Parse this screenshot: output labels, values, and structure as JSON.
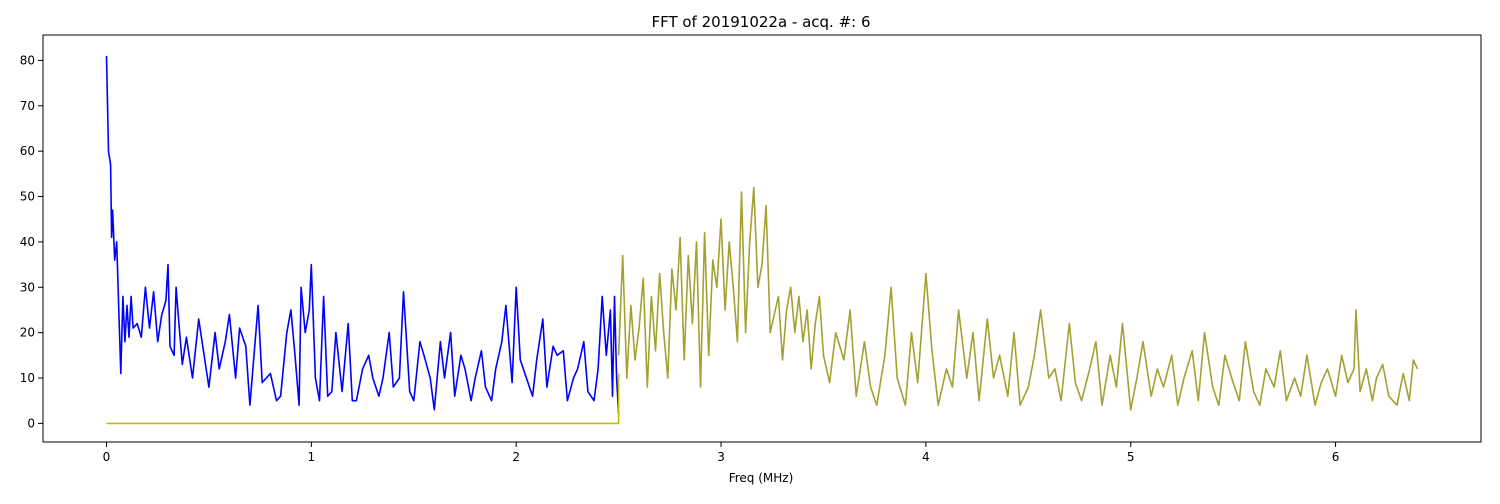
{
  "chart_data": {
    "type": "line",
    "title": "FFT of 20191022a - acq. #: 6",
    "xlabel": "Freq (MHz)",
    "ylabel": "",
    "xlim": [
      -0.31,
      6.71
    ],
    "ylim": [
      -4.1,
      85.6
    ],
    "xticks": [
      0,
      1,
      2,
      3,
      4,
      5,
      6
    ],
    "yticks": [
      0,
      10,
      20,
      30,
      40,
      50,
      60,
      70,
      80
    ],
    "grid": false,
    "legend": "none",
    "colors": {
      "blue_series": "#0000ff",
      "yellow_series": "#bfbf00",
      "olive_series": "#a4a032"
    },
    "series": [
      {
        "color": "#0000ff",
        "x": [
          0.0,
          0.01,
          0.02,
          0.025,
          0.03,
          0.04,
          0.05,
          0.06,
          0.07,
          0.08,
          0.09,
          0.1,
          0.11,
          0.12,
          0.13,
          0.15,
          0.17,
          0.19,
          0.21,
          0.23,
          0.25,
          0.27,
          0.29,
          0.3,
          0.31,
          0.33,
          0.34,
          0.35,
          0.37,
          0.39,
          0.42,
          0.45,
          0.48,
          0.5,
          0.53,
          0.55,
          0.58,
          0.6,
          0.63,
          0.65,
          0.68,
          0.7,
          0.72,
          0.74,
          0.76,
          0.78,
          0.8,
          0.83,
          0.85,
          0.88,
          0.9,
          0.92,
          0.94,
          0.95,
          0.97,
          0.99,
          1.0,
          1.02,
          1.04,
          1.06,
          1.08,
          1.1,
          1.12,
          1.15,
          1.18,
          1.2,
          1.22,
          1.25,
          1.28,
          1.3,
          1.33,
          1.35,
          1.38,
          1.4,
          1.43,
          1.45,
          1.48,
          1.5,
          1.53,
          1.55,
          1.58,
          1.6,
          1.63,
          1.65,
          1.68,
          1.7,
          1.73,
          1.75,
          1.78,
          1.8,
          1.83,
          1.85,
          1.88,
          1.9,
          1.93,
          1.95,
          1.98,
          2.0,
          2.02,
          2.05,
          2.08,
          2.1,
          2.13,
          2.15,
          2.18,
          2.2,
          2.23,
          2.25,
          2.28,
          2.3,
          2.33,
          2.35,
          2.38,
          2.4,
          2.42,
          2.44,
          2.46,
          2.47,
          2.48,
          2.49,
          2.5
        ],
        "y": [
          81,
          60,
          57,
          41,
          47,
          36,
          40,
          25,
          11,
          28,
          18,
          26,
          19,
          28,
          21,
          22,
          19,
          30,
          21,
          29,
          18,
          24,
          27,
          35,
          17,
          15,
          30,
          24,
          13,
          19,
          10,
          23,
          14,
          8,
          20,
          12,
          18,
          24,
          10,
          21,
          17,
          4,
          15,
          26,
          9,
          10,
          11,
          5,
          6,
          20,
          25,
          15,
          4,
          30,
          20,
          25,
          35,
          10,
          5,
          28,
          6,
          7,
          20,
          7,
          22,
          5,
          5,
          12,
          15,
          10,
          6,
          10,
          20,
          8,
          10,
          29,
          7,
          5,
          18,
          15,
          10,
          3,
          18,
          10,
          20,
          6,
          15,
          12,
          5,
          10,
          16,
          8,
          5,
          12,
          18,
          26,
          9,
          30,
          14,
          10,
          6,
          14,
          23,
          8,
          17,
          15,
          16,
          5,
          10,
          12,
          18,
          7,
          5,
          12,
          28,
          15,
          25,
          6,
          28,
          10,
          2
        ]
      },
      {
        "color": "#bfbf00",
        "x": [
          0.0,
          2.5,
          2.5
        ],
        "y": [
          0,
          0,
          11
        ]
      },
      {
        "color": "#a4a032",
        "x": [
          2.5,
          2.52,
          2.54,
          2.56,
          2.58,
          2.6,
          2.62,
          2.64,
          2.66,
          2.68,
          2.7,
          2.72,
          2.74,
          2.76,
          2.78,
          2.8,
          2.82,
          2.84,
          2.86,
          2.88,
          2.9,
          2.92,
          2.94,
          2.96,
          2.98,
          3.0,
          3.02,
          3.04,
          3.06,
          3.08,
          3.1,
          3.12,
          3.14,
          3.16,
          3.18,
          3.2,
          3.22,
          3.24,
          3.26,
          3.28,
          3.3,
          3.32,
          3.34,
          3.36,
          3.38,
          3.4,
          3.42,
          3.44,
          3.46,
          3.48,
          3.5,
          3.53,
          3.56,
          3.6,
          3.63,
          3.66,
          3.7,
          3.73,
          3.76,
          3.8,
          3.83,
          3.86,
          3.9,
          3.93,
          3.96,
          4.0,
          4.03,
          4.06,
          4.1,
          4.13,
          4.16,
          4.2,
          4.23,
          4.26,
          4.3,
          4.33,
          4.36,
          4.4,
          4.43,
          4.46,
          4.5,
          4.53,
          4.56,
          4.6,
          4.63,
          4.66,
          4.7,
          4.73,
          4.76,
          4.8,
          4.83,
          4.86,
          4.9,
          4.93,
          4.96,
          5.0,
          5.03,
          5.06,
          5.1,
          5.13,
          5.16,
          5.2,
          5.23,
          5.26,
          5.3,
          5.33,
          5.36,
          5.4,
          5.43,
          5.46,
          5.5,
          5.53,
          5.56,
          5.6,
          5.63,
          5.66,
          5.7,
          5.73,
          5.76,
          5.8,
          5.83,
          5.86,
          5.9,
          5.93,
          5.96,
          6.0,
          6.03,
          6.06,
          6.09,
          6.1,
          6.12,
          6.15,
          6.18,
          6.2,
          6.23,
          6.26,
          6.3,
          6.33,
          6.36,
          6.38,
          6.4
        ],
        "y": [
          15,
          37,
          10,
          26,
          14,
          21,
          32,
          8,
          28,
          16,
          33,
          20,
          10,
          34,
          25,
          41,
          14,
          37,
          22,
          40,
          8,
          42,
          15,
          36,
          30,
          45,
          25,
          40,
          30,
          18,
          51,
          20,
          40,
          52,
          30,
          35,
          48,
          20,
          24,
          28,
          14,
          25,
          30,
          20,
          28,
          18,
          25,
          12,
          22,
          28,
          15,
          9,
          20,
          14,
          25,
          6,
          18,
          8,
          4,
          15,
          30,
          10,
          4,
          20,
          9,
          33,
          16,
          4,
          12,
          8,
          25,
          10,
          20,
          5,
          23,
          10,
          15,
          6,
          20,
          4,
          8,
          15,
          25,
          10,
          12,
          5,
          22,
          9,
          5,
          12,
          18,
          4,
          15,
          8,
          22,
          3,
          10,
          18,
          6,
          12,
          8,
          15,
          4,
          10,
          16,
          5,
          20,
          8,
          4,
          15,
          9,
          5,
          18,
          7,
          4,
          12,
          8,
          16,
          5,
          10,
          6,
          15,
          4,
          9,
          12,
          6,
          15,
          9,
          12,
          25,
          7,
          12,
          5,
          10,
          13,
          6,
          4,
          11,
          5,
          14,
          12
        ]
      }
    ]
  }
}
